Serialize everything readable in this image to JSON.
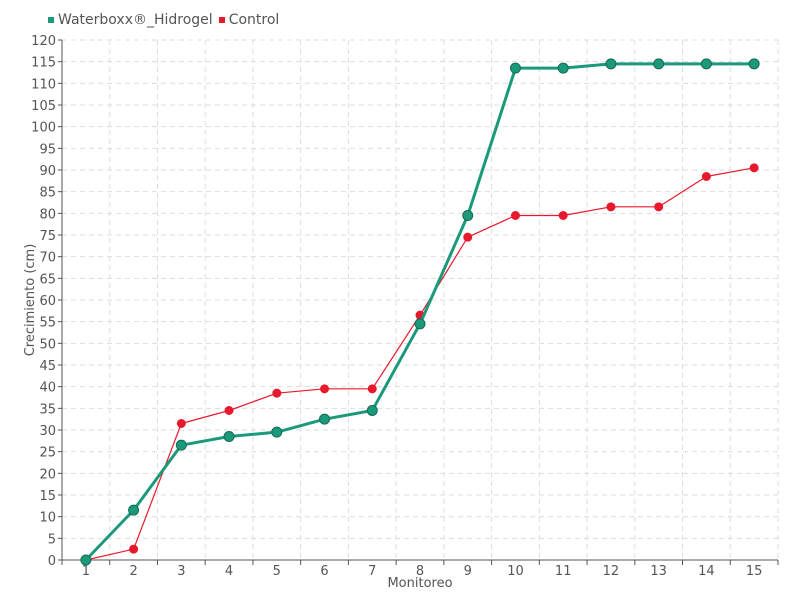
{
  "chart_data": {
    "type": "line",
    "title": "",
    "xlabel": "Monitoreo",
    "ylabel": "Crecimiento (cm)",
    "categories": [
      "1",
      "2",
      "3",
      "4",
      "5",
      "6",
      "7",
      "8",
      "9",
      "10",
      "11",
      "12",
      "13",
      "14",
      "15"
    ],
    "ylim": [
      0,
      120
    ],
    "ytick_step": 5,
    "grid": true,
    "legend_position": "top-left",
    "series": [
      {
        "name": "Waterboxx®_Hidrogel",
        "color": "#1a9a7a",
        "values": [
          0,
          11.5,
          26.5,
          28.5,
          29.5,
          32.5,
          34.5,
          54.5,
          79.5,
          113.5,
          113.5,
          114.5,
          114.5,
          114.5,
          114.5
        ]
      },
      {
        "name": "Control",
        "color": "#e8192c",
        "values": [
          0,
          2.5,
          31.5,
          34.5,
          38.5,
          39.5,
          39.5,
          56.5,
          74.5,
          79.5,
          79.5,
          81.5,
          81.5,
          88.5,
          90.5
        ]
      }
    ]
  }
}
